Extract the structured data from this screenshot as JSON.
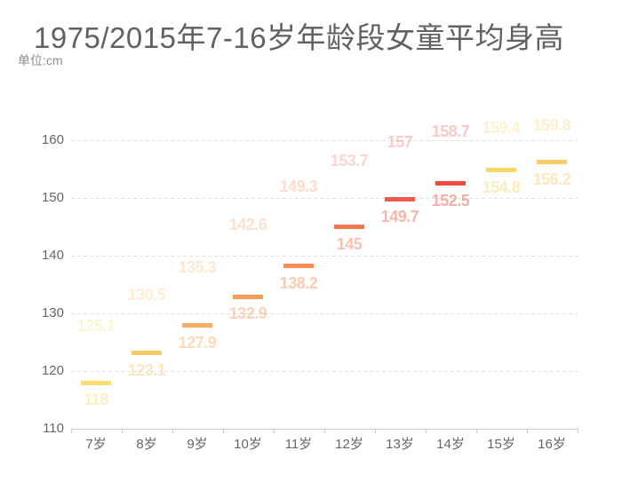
{
  "title": "1975/2015年7-16岁年龄段女童平均身高",
  "subtitle": "单位:cm",
  "chart_data": {
    "type": "bar",
    "note": "dash-style bar marks; 1975 series drawn as colored dashes with value label below, 2015 series shows faded value label above (mark not visible)",
    "unit": "cm",
    "categories": [
      "7岁",
      "8岁",
      "9岁",
      "10岁",
      "11岁",
      "12岁",
      "13岁",
      "14岁",
      "15岁",
      "16岁"
    ],
    "series": [
      {
        "name": "1975",
        "label_position": "below",
        "values": [
          118,
          123.1,
          127.9,
          132.9,
          138.2,
          145,
          149.7,
          152.5,
          154.8,
          156.2
        ]
      },
      {
        "name": "2015",
        "label_position": "above",
        "values": [
          125.1,
          130.5,
          135.3,
          142.6,
          149.3,
          153.7,
          157,
          158.7,
          159.4,
          159.8
        ]
      }
    ],
    "xlabel": "",
    "ylabel": "",
    "ylim": [
      110,
      163
    ],
    "yticks": [
      110,
      120,
      130,
      140,
      150,
      160
    ],
    "grid": "horizontal dashed",
    "legend_position": "none",
    "bar_colors": [
      "#f9df72",
      "#fbc96a",
      "#fbae62",
      "#fa9c58",
      "#f98d55",
      "#f6764f",
      "#f05a4b",
      "#ee4c41",
      "#f8d667",
      "#f8cd68"
    ],
    "label_opacity_1975": 0.45,
    "label_opacity_2015": 0.3,
    "axis_line_color": "#cccccc",
    "gridline_color": "#e2e2e2",
    "axis_text_color": "#666666",
    "title_color": "#616161",
    "subtitle_color": "#8e8e8e",
    "background_color": "#ffffff"
  }
}
